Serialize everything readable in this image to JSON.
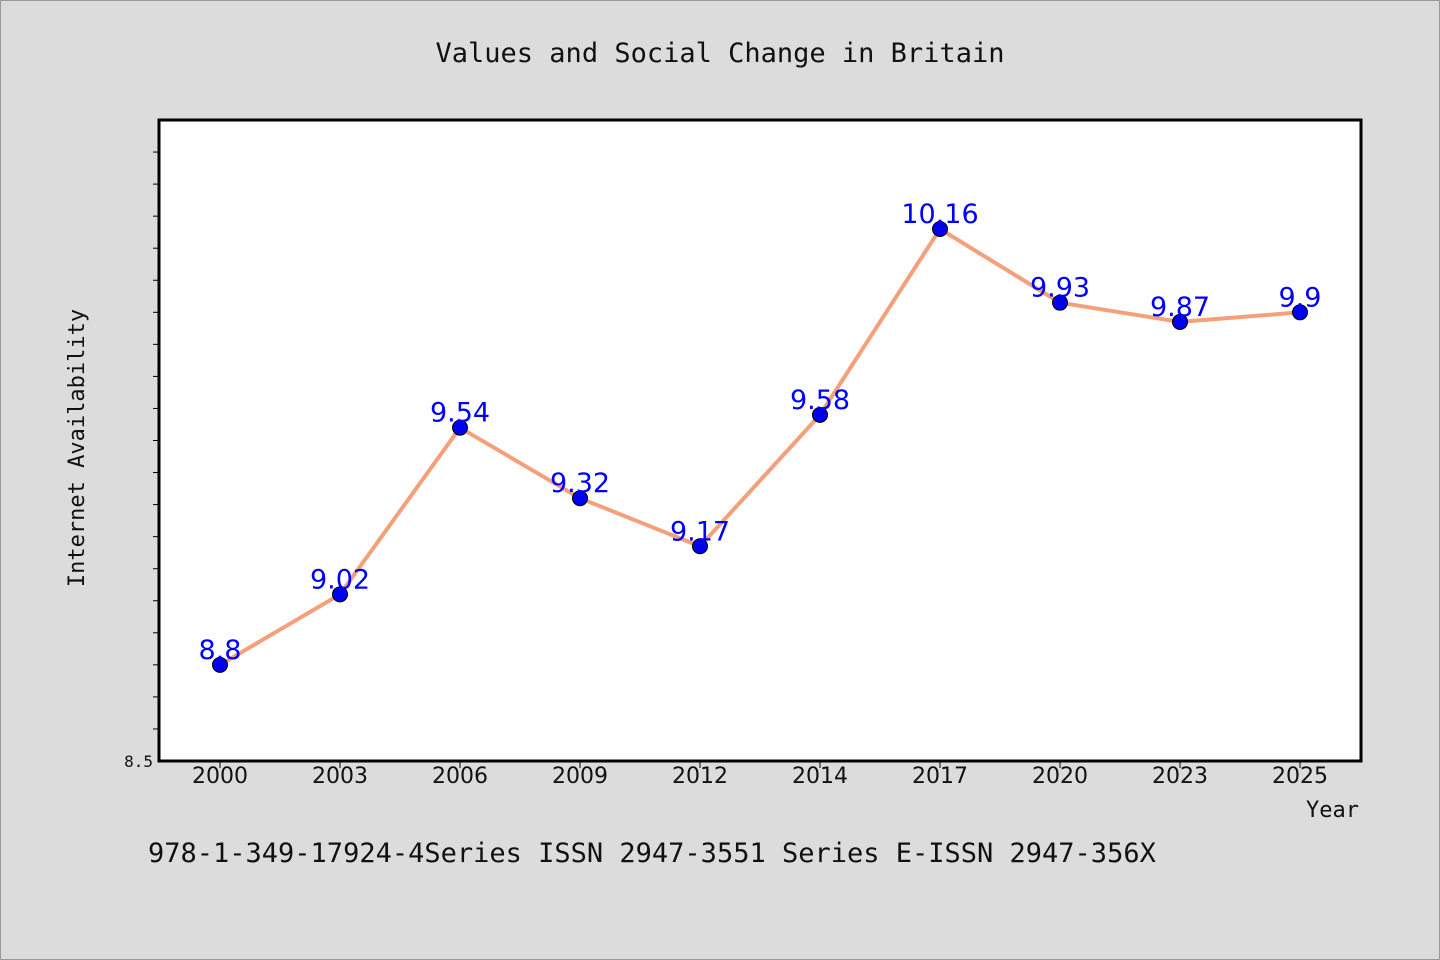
{
  "chart_data": {
    "type": "line",
    "title": "Values and Social Change in Britain",
    "xlabel": "Year",
    "ylabel": "Internet Availability",
    "categories": [
      "2000",
      "2003",
      "2006",
      "2009",
      "2012",
      "2014",
      "2017",
      "2020",
      "2023",
      "2025"
    ],
    "series": [
      {
        "values": [
          8.8,
          9.02,
          9.54,
          9.32,
          9.17,
          9.58,
          10.16,
          9.93,
          9.87,
          9.9
        ],
        "data_labels": [
          "8.8",
          "9.02",
          "9.54",
          "9.32",
          "9.17",
          "9.58",
          "10.16",
          "9.93",
          "9.87",
          "9.9"
        ],
        "line_color": "#f4a07a",
        "marker_color": "#0000ee"
      }
    ],
    "y_tick_labels": [
      "8.5"
    ],
    "ylim": [
      8.5,
      10.5
    ],
    "grid": false,
    "legend": "none"
  },
  "footer": {
    "text": "978-1-349-17924-4Series ISSN 2947-3551 Series E-ISSN 2947-356X"
  },
  "colors": {
    "background": "#dcdcdc",
    "plot_area": "#ffffff",
    "data_label": "#0000ff"
  }
}
